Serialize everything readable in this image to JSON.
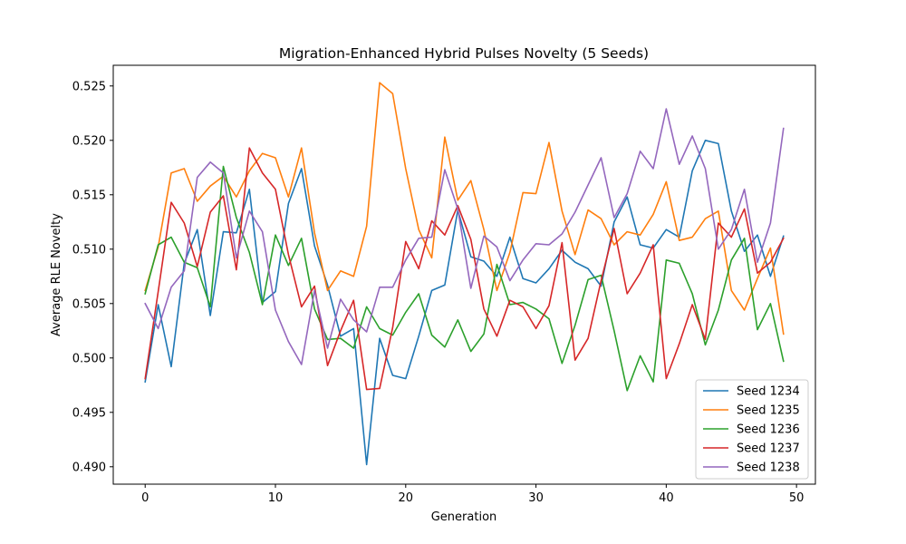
{
  "chart_data": {
    "type": "line",
    "title": "Migration-Enhanced Hybrid Pulses Novelty (5 Seeds)",
    "xlabel": "Generation",
    "ylabel": "Average RLE Novelty",
    "xlim": [
      -2.45,
      51.45
    ],
    "ylim": [
      0.4884,
      0.5269
    ],
    "xticks": [
      0,
      10,
      20,
      30,
      40,
      50
    ],
    "yticks": [
      0.49,
      0.495,
      0.5,
      0.505,
      0.51,
      0.515,
      0.52,
      0.525
    ],
    "ytick_labels": [
      "0.490",
      "0.495",
      "0.500",
      "0.505",
      "0.510",
      "0.515",
      "0.520",
      "0.525"
    ],
    "grid": false,
    "legend_position": "lower-right",
    "x": [
      0,
      1,
      2,
      3,
      4,
      5,
      6,
      7,
      8,
      9,
      10,
      11,
      12,
      13,
      14,
      15,
      16,
      17,
      18,
      19,
      20,
      21,
      22,
      23,
      24,
      25,
      26,
      27,
      28,
      29,
      30,
      31,
      32,
      33,
      34,
      35,
      36,
      37,
      38,
      39,
      40,
      41,
      42,
      43,
      44,
      45,
      46,
      47,
      48,
      49
    ],
    "series": [
      {
        "name": "Seed 1234",
        "color": "#1f77b4",
        "values": [
          0.4978,
          0.5049,
          0.4992,
          0.5087,
          0.5118,
          0.5039,
          0.5116,
          0.5115,
          0.5155,
          0.5051,
          0.5061,
          0.5142,
          0.5174,
          0.5103,
          0.5067,
          0.502,
          0.5027,
          0.4902,
          0.5018,
          0.4984,
          0.4981,
          0.502,
          0.5062,
          0.5067,
          0.5136,
          0.5093,
          0.5089,
          0.5075,
          0.5111,
          0.5073,
          0.5069,
          0.5082,
          0.5099,
          0.5088,
          0.5082,
          0.5066,
          0.5125,
          0.5148,
          0.5104,
          0.5101,
          0.5118,
          0.5111,
          0.5172,
          0.52,
          0.5197,
          0.5135,
          0.5098,
          0.5113,
          0.5075,
          0.5112
        ]
      },
      {
        "name": "Seed 1235",
        "color": "#ff7f0e",
        "values": [
          0.5062,
          0.5102,
          0.517,
          0.5174,
          0.5144,
          0.5158,
          0.5167,
          0.5148,
          0.5172,
          0.5188,
          0.5184,
          0.5148,
          0.5193,
          0.5115,
          0.5062,
          0.508,
          0.5075,
          0.5121,
          0.5253,
          0.5243,
          0.5174,
          0.5118,
          0.5092,
          0.5203,
          0.5145,
          0.5163,
          0.5118,
          0.5062,
          0.5097,
          0.5152,
          0.5151,
          0.5198,
          0.5135,
          0.5095,
          0.5136,
          0.5128,
          0.5104,
          0.5116,
          0.5113,
          0.5132,
          0.5162,
          0.5108,
          0.5111,
          0.5128,
          0.5135,
          0.5062,
          0.5044,
          0.5073,
          0.5101,
          0.5022
        ]
      },
      {
        "name": "Seed 1236",
        "color": "#2ca02c",
        "values": [
          0.5059,
          0.5104,
          0.5111,
          0.5088,
          0.5083,
          0.5047,
          0.5176,
          0.5129,
          0.5097,
          0.5049,
          0.5113,
          0.5085,
          0.511,
          0.5045,
          0.5017,
          0.5018,
          0.5009,
          0.5047,
          0.5027,
          0.5021,
          0.5042,
          0.5059,
          0.5021,
          0.501,
          0.5035,
          0.5006,
          0.5022,
          0.5086,
          0.5049,
          0.5051,
          0.5045,
          0.5036,
          0.4995,
          0.503,
          0.5072,
          0.5076,
          0.5025,
          0.497,
          0.5002,
          0.4978,
          0.509,
          0.5087,
          0.5059,
          0.5012,
          0.5044,
          0.509,
          0.511,
          0.5026,
          0.505,
          0.4997
        ]
      },
      {
        "name": "Seed 1237",
        "color": "#d62728",
        "values": [
          0.4981,
          0.5061,
          0.5143,
          0.5124,
          0.5084,
          0.5134,
          0.5149,
          0.5081,
          0.5193,
          0.517,
          0.5155,
          0.5095,
          0.5047,
          0.5066,
          0.4993,
          0.5025,
          0.5053,
          0.4971,
          0.4972,
          0.5028,
          0.5107,
          0.5082,
          0.5126,
          0.5113,
          0.514,
          0.5109,
          0.5045,
          0.502,
          0.5053,
          0.5047,
          0.5027,
          0.5048,
          0.5106,
          0.4998,
          0.5018,
          0.5071,
          0.5119,
          0.5059,
          0.5078,
          0.5104,
          0.4981,
          0.5013,
          0.5049,
          0.5017,
          0.5124,
          0.5111,
          0.5137,
          0.5078,
          0.5088,
          0.511
        ]
      },
      {
        "name": "Seed 1238",
        "color": "#9467bd",
        "values": [
          0.505,
          0.5027,
          0.5065,
          0.508,
          0.5166,
          0.518,
          0.517,
          0.5092,
          0.5135,
          0.5116,
          0.5044,
          0.5015,
          0.4994,
          0.5062,
          0.5009,
          0.5054,
          0.5035,
          0.5024,
          0.5065,
          0.5065,
          0.509,
          0.511,
          0.5111,
          0.5173,
          0.5137,
          0.5064,
          0.5112,
          0.5102,
          0.5071,
          0.509,
          0.5105,
          0.5104,
          0.5114,
          0.5134,
          0.5159,
          0.5184,
          0.5129,
          0.5151,
          0.519,
          0.5174,
          0.5229,
          0.5178,
          0.5204,
          0.5174,
          0.51,
          0.5118,
          0.5155,
          0.5088,
          0.5124,
          0.5211
        ]
      }
    ]
  }
}
